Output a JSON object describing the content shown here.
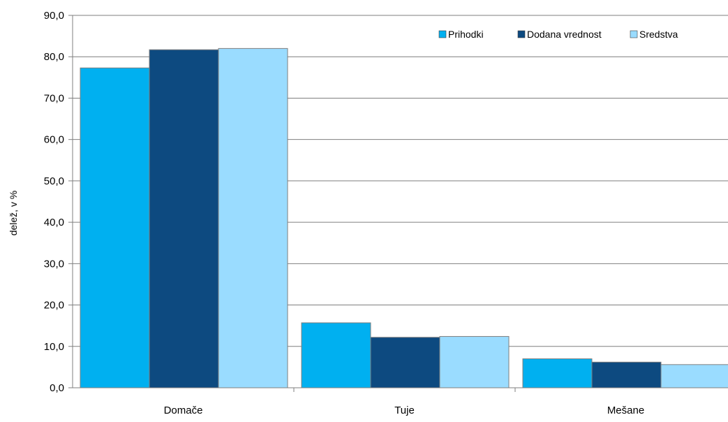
{
  "chart_data": {
    "type": "bar",
    "title": "",
    "xlabel": "",
    "ylabel": "delež, v %",
    "ylim": [
      0,
      90
    ],
    "ytick_step": 10,
    "ytick_labels": [
      "0,0",
      "10,0",
      "20,0",
      "30,0",
      "40,0",
      "50,0",
      "60,0",
      "70,0",
      "80,0",
      "90,0"
    ],
    "categories": [
      "Domače",
      "Tuje",
      "Mešane"
    ],
    "series": [
      {
        "name": "Prihodki",
        "color": "#00B0F0",
        "values": [
          77.3,
          15.7,
          7.0
        ]
      },
      {
        "name": "Dodana vrednost",
        "color": "#0D4A80",
        "values": [
          81.7,
          12.2,
          6.2
        ]
      },
      {
        "name": "Sredstva",
        "color": "#9ADCFF",
        "values": [
          82.0,
          12.4,
          5.6
        ]
      }
    ],
    "grid": true,
    "legend_position": "top-right",
    "bar_edge_color": "#7F7F7F",
    "gridline_color": "#7F7F7F"
  }
}
